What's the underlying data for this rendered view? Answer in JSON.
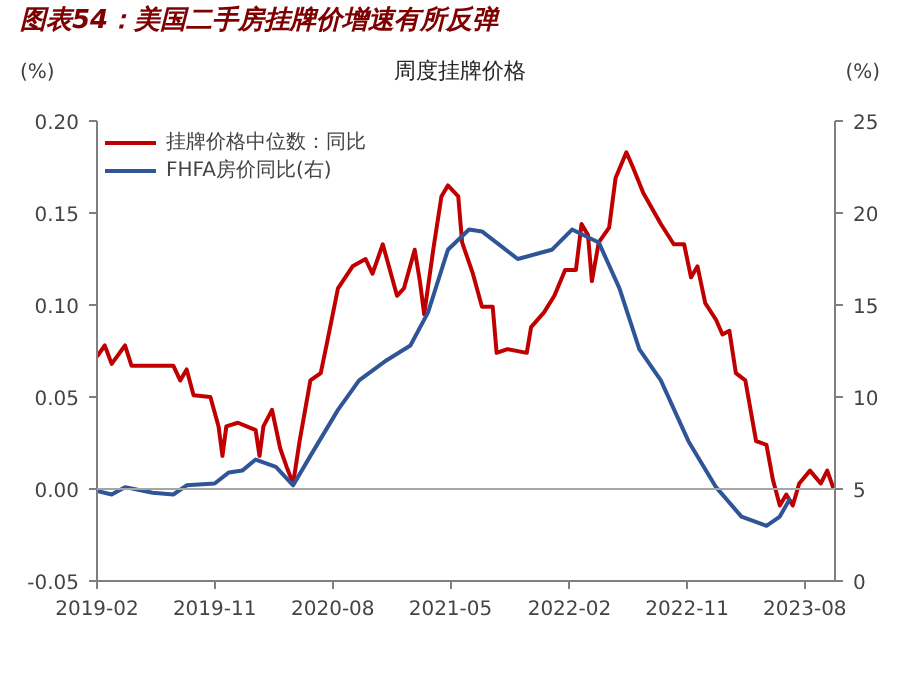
{
  "chart_data": {
    "type": "line",
    "title": "图表54：美国二手房挂牌价增速有所反弹",
    "subtitle": "周度挂牌价格",
    "ylabel": "(%)",
    "y2label": "(%)",
    "xlim": [
      "2019-02-01",
      "2023-10-10"
    ],
    "xticks": [
      "2019-02",
      "2019-11",
      "2020-08",
      "2021-05",
      "2022-02",
      "2022-11",
      "2023-08"
    ],
    "ylim": [
      -0.05,
      0.2
    ],
    "yticks": [
      {
        "value": -0.05,
        "label": "-0.05"
      },
      {
        "value": 0,
        "label": "0.00"
      },
      {
        "value": 0.05,
        "label": "0.05"
      },
      {
        "value": 0.1,
        "label": "0.10"
      },
      {
        "value": 0.15,
        "label": "0.15"
      },
      {
        "value": 0.2,
        "label": "0.20"
      }
    ],
    "y2lim": [
      0,
      25
    ],
    "y2ticks": [
      0,
      5,
      10,
      15,
      20,
      25
    ],
    "grid": false,
    "legend": "top left",
    "line_style": "solid",
    "marker": "none",
    "ref_lines": [
      {
        "axis": "y",
        "value": 0,
        "color": "#a6a6a6"
      }
    ],
    "series": [
      {
        "name": "挂牌价格中位数：同比",
        "color": "#c00000",
        "x": [
          "2019-02-01",
          "2019-02-19",
          "2019-03-07",
          "2019-04-07",
          "2019-04-22",
          "2019-06-10",
          "2019-07-28",
          "2019-08-13",
          "2019-08-28",
          "2019-09-13",
          "2019-10-22",
          "2019-11-10",
          "2019-11-19",
          "2019-11-28",
          "2019-12-25",
          "2020-02-04",
          "2020-02-13",
          "2020-02-22",
          "2020-03-13",
          "2020-04-01",
          "2020-04-16",
          "2020-05-01",
          "2020-05-16",
          "2020-06-10",
          "2020-07-04",
          "2020-07-19",
          "2020-08-13",
          "2020-09-16",
          "2020-10-16",
          "2020-11-01",
          "2020-11-25",
          "2020-12-28",
          "2021-01-13",
          "2021-02-07",
          "2021-02-19",
          "2021-03-01",
          "2021-03-22",
          "2021-04-10",
          "2021-04-25",
          "2021-05-19",
          "2021-05-28",
          "2021-06-22",
          "2021-07-13",
          "2021-08-07",
          "2021-08-16",
          "2021-09-10",
          "2021-10-25",
          "2021-11-04",
          "2021-12-04",
          "2021-12-28",
          "2022-01-22",
          "2022-02-16",
          "2022-03-01",
          "2022-03-16",
          "2022-03-25",
          "2022-04-10",
          "2022-05-04",
          "2022-05-19",
          "2022-06-13",
          "2022-06-28",
          "2022-07-22",
          "2022-09-01",
          "2022-10-01",
          "2022-10-25",
          "2022-11-10",
          "2022-11-25",
          "2022-12-13",
          "2023-01-07",
          "2023-01-22",
          "2023-02-07",
          "2023-02-22",
          "2023-03-16",
          "2023-04-10",
          "2023-05-04",
          "2023-05-19",
          "2023-06-04",
          "2023-06-19",
          "2023-07-04",
          "2023-07-19",
          "2023-08-13",
          "2023-09-07",
          "2023-09-22",
          "2023-10-07"
        ],
        "values": [
          0.072,
          0.078,
          0.068,
          0.078,
          0.067,
          0.067,
          0.067,
          0.059,
          0.065,
          0.051,
          0.05,
          0.034,
          0.018,
          0.034,
          0.036,
          0.032,
          0.018,
          0.034,
          0.043,
          0.022,
          0.012,
          0.003,
          0.026,
          0.059,
          0.063,
          0.08,
          0.109,
          0.121,
          0.125,
          0.117,
          0.133,
          0.105,
          0.109,
          0.13,
          0.113,
          0.095,
          0.13,
          0.159,
          0.165,
          0.159,
          0.134,
          0.117,
          0.099,
          0.099,
          0.074,
          0.076,
          0.074,
          0.088,
          0.096,
          0.105,
          0.119,
          0.119,
          0.144,
          0.138,
          0.113,
          0.134,
          0.142,
          0.169,
          0.183,
          0.175,
          0.161,
          0.144,
          0.133,
          0.133,
          0.115,
          0.121,
          0.101,
          0.092,
          0.084,
          0.086,
          0.063,
          0.059,
          0.026,
          0.024,
          0.005,
          -0.009,
          -0.003,
          -0.009,
          0.003,
          0.01,
          0.003,
          0.01,
          0.0
        ]
      },
      {
        "name": "FHFA房价同比(右)",
        "color": "#2f5597",
        "axis": "y2",
        "x": [
          "2019-02-01",
          "2019-03-07",
          "2019-04-07",
          "2019-06-10",
          "2019-07-28",
          "2019-08-28",
          "2019-11-01",
          "2019-12-04",
          "2020-01-04",
          "2020-02-04",
          "2020-03-22",
          "2020-05-01",
          "2020-06-10",
          "2020-08-13",
          "2020-10-01",
          "2020-12-04",
          "2021-01-28",
          "2021-03-10",
          "2021-04-25",
          "2021-06-13",
          "2021-07-13",
          "2021-10-04",
          "2021-12-22",
          "2022-02-07",
          "2022-04-10",
          "2022-05-28",
          "2022-07-13",
          "2022-09-01",
          "2022-11-04",
          "2023-01-07",
          "2023-03-07",
          "2023-05-04",
          "2023-06-04",
          "2023-06-28"
        ],
        "values": [
          4.9,
          4.7,
          5.1,
          4.8,
          4.7,
          5.2,
          5.3,
          5.9,
          6.0,
          6.6,
          6.2,
          5.2,
          6.8,
          9.3,
          10.9,
          12.0,
          12.8,
          14.6,
          18.0,
          19.1,
          19.0,
          17.5,
          18.0,
          19.1,
          18.4,
          15.9,
          12.6,
          10.9,
          7.6,
          5.1,
          3.5,
          3.0,
          3.5,
          4.5
        ]
      }
    ]
  }
}
